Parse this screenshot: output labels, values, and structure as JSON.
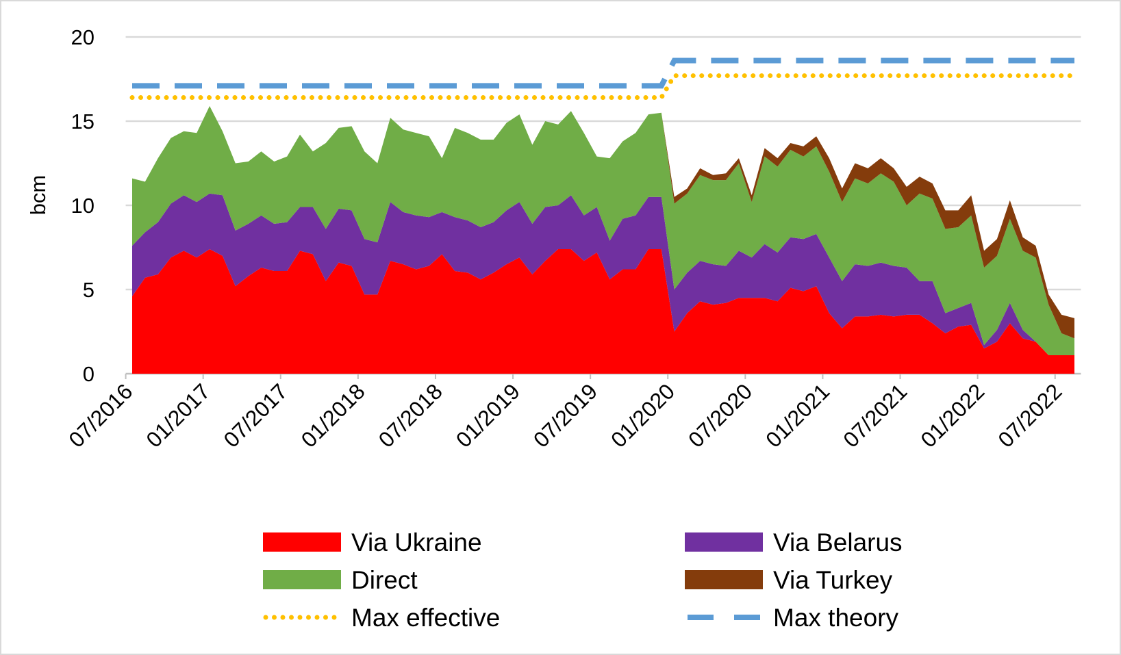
{
  "chart_data": {
    "type": "area",
    "stacked": true,
    "title": "",
    "ylabel": "bcm",
    "xlabel": "",
    "ylim": [
      0,
      20
    ],
    "yticks": [
      "0",
      "5",
      "10",
      "15",
      "20"
    ],
    "x_start": "07/2016",
    "x_frequency": "monthly",
    "xtick_labels": [
      "07/2016",
      "01/2017",
      "07/2017",
      "01/2018",
      "07/2018",
      "01/2019",
      "07/2019",
      "01/2020",
      "07/2020",
      "01/2021",
      "07/2021",
      "01/2022",
      "07/2022"
    ],
    "grid": true,
    "legend_position": "bottom",
    "series": [
      {
        "name": "Via Ukraine",
        "color": "#FF0000",
        "kind": "area",
        "values": [
          4.6,
          5.7,
          5.9,
          6.9,
          7.3,
          6.9,
          7.4,
          7.0,
          5.2,
          5.8,
          6.3,
          6.1,
          6.1,
          7.3,
          7.1,
          5.5,
          6.6,
          6.4,
          4.7,
          4.7,
          6.7,
          6.5,
          6.2,
          6.4,
          7.1,
          6.1,
          6.0,
          5.6,
          6.0,
          6.5,
          6.9,
          5.9,
          6.7,
          7.4,
          7.4,
          6.7,
          7.2,
          5.6,
          6.2,
          6.2,
          7.4,
          7.4,
          2.5,
          3.6,
          4.3,
          4.1,
          4.2,
          4.5,
          4.5,
          4.5,
          4.3,
          5.1,
          4.9,
          5.2,
          3.6,
          2.7,
          3.4,
          3.4,
          3.5,
          3.4,
          3.5,
          3.5,
          3.0,
          2.4,
          2.8,
          2.9,
          1.5,
          1.9,
          3.0,
          2.1,
          1.9,
          1.1,
          1.1,
          1.1
        ]
      },
      {
        "name": "Via Belarus",
        "color": "#7030A0",
        "kind": "area",
        "values": [
          3.0,
          2.7,
          3.1,
          3.2,
          3.3,
          3.3,
          3.3,
          3.6,
          3.3,
          3.1,
          3.1,
          2.8,
          2.9,
          2.6,
          2.8,
          3.1,
          3.2,
          3.3,
          3.3,
          3.1,
          3.5,
          3.1,
          3.2,
          2.9,
          2.5,
          3.2,
          3.1,
          3.1,
          3.0,
          3.2,
          3.3,
          3.0,
          3.2,
          2.6,
          3.2,
          2.7,
          2.7,
          2.3,
          3.0,
          3.2,
          3.1,
          3.1,
          2.5,
          2.4,
          2.4,
          2.4,
          2.2,
          2.8,
          2.4,
          3.2,
          2.9,
          3.0,
          3.1,
          3.1,
          3.3,
          2.8,
          3.1,
          3.0,
          3.1,
          3.0,
          2.8,
          2.0,
          2.5,
          1.2,
          1.1,
          1.3,
          0.2,
          0.7,
          1.2,
          0.5,
          0,
          0,
          0,
          0
        ]
      },
      {
        "name": "Direct",
        "color": "#70AD47",
        "kind": "area",
        "values": [
          4.0,
          3.0,
          3.8,
          3.9,
          3.8,
          4.1,
          5.2,
          3.8,
          4.0,
          3.7,
          3.8,
          3.7,
          3.9,
          4.3,
          3.3,
          5.1,
          4.8,
          5.0,
          5.2,
          4.7,
          5.0,
          4.9,
          4.9,
          4.8,
          3.2,
          5.3,
          5.2,
          5.2,
          4.9,
          5.2,
          5.2,
          4.7,
          5.1,
          4.8,
          5.0,
          4.9,
          3.0,
          4.9,
          4.6,
          4.9,
          4.9,
          5.0,
          5.1,
          4.7,
          5.1,
          5.0,
          5.1,
          5.2,
          3.3,
          5.2,
          5.1,
          5.2,
          4.9,
          5.2,
          5.1,
          4.7,
          5.1,
          4.9,
          5.3,
          5.0,
          3.7,
          5.2,
          4.9,
          5.0,
          4.8,
          5.2,
          4.6,
          4.4,
          5.0,
          4.7,
          5.0,
          3.0,
          1.3,
          1.0
        ]
      },
      {
        "name": "Via Turkey",
        "color": "#843C0C",
        "kind": "area",
        "values": [
          0,
          0,
          0,
          0,
          0,
          0,
          0,
          0,
          0,
          0,
          0,
          0,
          0,
          0,
          0,
          0,
          0,
          0,
          0,
          0,
          0,
          0,
          0,
          0,
          0,
          0,
          0,
          0,
          0,
          0,
          0,
          0,
          0,
          0,
          0,
          0,
          0,
          0,
          0,
          0,
          0,
          0,
          0.4,
          0.3,
          0.4,
          0.3,
          0.4,
          0.3,
          0.4,
          0.5,
          0.5,
          0.4,
          0.6,
          0.6,
          0.8,
          0.8,
          0.9,
          0.9,
          0.9,
          0.8,
          1.1,
          1.0,
          0.9,
          1.1,
          1.0,
          1.2,
          1.0,
          1.0,
          1.1,
          0.8,
          0.7,
          0.6,
          1.1,
          1.2
        ]
      },
      {
        "name": "Max effective",
        "color": "#FFC000",
        "kind": "dotted-line",
        "values": [
          16.4,
          16.4,
          16.4,
          16.4,
          16.4,
          16.4,
          16.4,
          16.4,
          16.4,
          16.4,
          16.4,
          16.4,
          16.4,
          16.4,
          16.4,
          16.4,
          16.4,
          16.4,
          16.4,
          16.4,
          16.4,
          16.4,
          16.4,
          16.4,
          16.4,
          16.4,
          16.4,
          16.4,
          16.4,
          16.4,
          16.4,
          16.4,
          16.4,
          16.4,
          16.4,
          16.4,
          16.4,
          16.4,
          16.4,
          16.4,
          16.4,
          16.4,
          17.7,
          17.7,
          17.7,
          17.7,
          17.7,
          17.7,
          17.7,
          17.7,
          17.7,
          17.7,
          17.7,
          17.7,
          17.7,
          17.7,
          17.7,
          17.7,
          17.7,
          17.7,
          17.7,
          17.7,
          17.7,
          17.7,
          17.7,
          17.7,
          17.7,
          17.7,
          17.7,
          17.7,
          17.7,
          17.7,
          17.7,
          17.7
        ]
      },
      {
        "name": "Max theory",
        "color": "#5B9BD5",
        "kind": "dashed-line",
        "values": [
          17.1,
          17.1,
          17.1,
          17.1,
          17.1,
          17.1,
          17.1,
          17.1,
          17.1,
          17.1,
          17.1,
          17.1,
          17.1,
          17.1,
          17.1,
          17.1,
          17.1,
          17.1,
          17.1,
          17.1,
          17.1,
          17.1,
          17.1,
          17.1,
          17.1,
          17.1,
          17.1,
          17.1,
          17.1,
          17.1,
          17.1,
          17.1,
          17.1,
          17.1,
          17.1,
          17.1,
          17.1,
          17.1,
          17.1,
          17.1,
          17.1,
          17.1,
          18.6,
          18.6,
          18.6,
          18.6,
          18.6,
          18.6,
          18.6,
          18.6,
          18.6,
          18.6,
          18.6,
          18.6,
          18.6,
          18.6,
          18.6,
          18.6,
          18.6,
          18.6,
          18.6,
          18.6,
          18.6,
          18.6,
          18.6,
          18.6,
          18.6,
          18.6,
          18.6,
          18.6,
          18.6,
          18.6,
          18.6,
          18.6
        ]
      }
    ]
  }
}
